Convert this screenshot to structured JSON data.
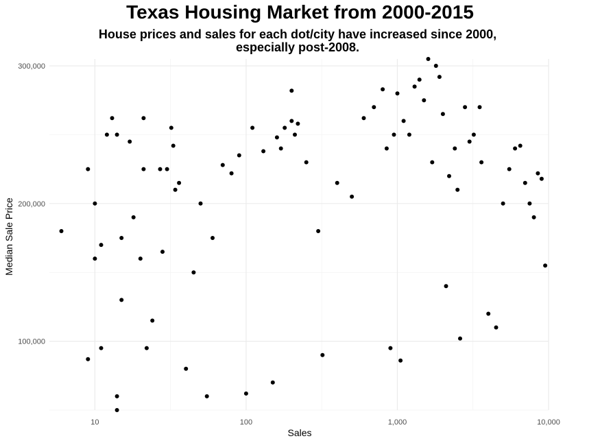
{
  "chart_data": {
    "type": "scatter",
    "title": "Texas Housing Market from 2000-2015",
    "subtitle_lines": [
      "House prices and sales for each dot/city have increased since 2000,",
      "especially post-2008."
    ],
    "xlabel": "Sales",
    "ylabel": "Median Sale Price",
    "x_scale": "log10",
    "xlim": [
      5,
      10000
    ],
    "ylim": [
      50000,
      305000
    ],
    "x_ticks": [
      10,
      100,
      1000,
      10000
    ],
    "x_tick_labels": [
      "10",
      "100",
      "1,000",
      "10,000"
    ],
    "y_ticks": [
      100000,
      200000,
      300000
    ],
    "y_tick_labels": [
      "100,000",
      "200,000",
      "300,000"
    ],
    "grid": true,
    "legend": "none",
    "point_color": "#000000",
    "points": [
      [
        6,
        180000
      ],
      [
        9,
        225000
      ],
      [
        9,
        87000
      ],
      [
        10,
        200000
      ],
      [
        10,
        160000
      ],
      [
        11,
        170000
      ],
      [
        11,
        95000
      ],
      [
        12,
        250000
      ],
      [
        13,
        262000
      ],
      [
        14,
        250000
      ],
      [
        14,
        50000
      ],
      [
        14,
        60000
      ],
      [
        15,
        175000
      ],
      [
        15,
        130000
      ],
      [
        17,
        245000
      ],
      [
        18,
        190000
      ],
      [
        20,
        160000
      ],
      [
        21,
        262000
      ],
      [
        21,
        225000
      ],
      [
        22,
        95000
      ],
      [
        24,
        115000
      ],
      [
        27,
        225000
      ],
      [
        28,
        165000
      ],
      [
        30,
        225000
      ],
      [
        32,
        255000
      ],
      [
        33,
        242000
      ],
      [
        34,
        210000
      ],
      [
        36,
        215000
      ],
      [
        40,
        80000
      ],
      [
        45,
        150000
      ],
      [
        50,
        200000
      ],
      [
        55,
        60000
      ],
      [
        60,
        175000
      ],
      [
        70,
        228000
      ],
      [
        80,
        222000
      ],
      [
        90,
        235000
      ],
      [
        100,
        62000
      ],
      [
        110,
        255000
      ],
      [
        130,
        238000
      ],
      [
        150,
        70000
      ],
      [
        160,
        248000
      ],
      [
        170,
        240000
      ],
      [
        180,
        255000
      ],
      [
        200,
        260000
      ],
      [
        200,
        282000
      ],
      [
        210,
        250000
      ],
      [
        220,
        258000
      ],
      [
        250,
        230000
      ],
      [
        300,
        180000
      ],
      [
        320,
        90000
      ],
      [
        400,
        215000
      ],
      [
        500,
        205000
      ],
      [
        600,
        262000
      ],
      [
        700,
        270000
      ],
      [
        800,
        283000
      ],
      [
        850,
        240000
      ],
      [
        900,
        95000
      ],
      [
        950,
        250000
      ],
      [
        1000,
        280000
      ],
      [
        1050,
        86000
      ],
      [
        1100,
        260000
      ],
      [
        1200,
        250000
      ],
      [
        1300,
        285000
      ],
      [
        1400,
        290000
      ],
      [
        1500,
        275000
      ],
      [
        1600,
        305000
      ],
      [
        1700,
        230000
      ],
      [
        1800,
        300000
      ],
      [
        1900,
        292000
      ],
      [
        2000,
        265000
      ],
      [
        2100,
        140000
      ],
      [
        2200,
        220000
      ],
      [
        2400,
        240000
      ],
      [
        2500,
        210000
      ],
      [
        2600,
        102000
      ],
      [
        2800,
        270000
      ],
      [
        3000,
        245000
      ],
      [
        3200,
        250000
      ],
      [
        3500,
        270000
      ],
      [
        3600,
        230000
      ],
      [
        4000,
        120000
      ],
      [
        4500,
        110000
      ],
      [
        5000,
        200000
      ],
      [
        5500,
        225000
      ],
      [
        6000,
        240000
      ],
      [
        6500,
        242000
      ],
      [
        7000,
        215000
      ],
      [
        7500,
        200000
      ],
      [
        8000,
        190000
      ],
      [
        8500,
        222000
      ],
      [
        9000,
        218000
      ],
      [
        9500,
        155000
      ]
    ]
  }
}
